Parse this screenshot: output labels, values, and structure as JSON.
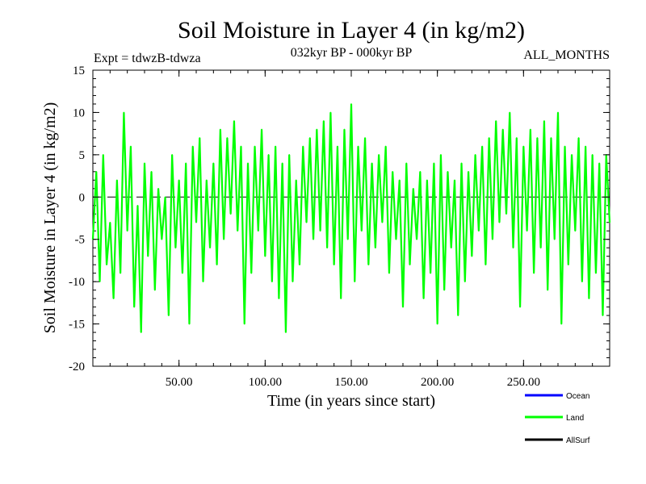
{
  "chart_data": {
    "type": "line",
    "title": "Soil Moisture in Layer 4 (in kg/m2)",
    "subtitle_left": "Expt = tdwzB-tdwza",
    "subtitle_center": "032kyr BP - 000kyr BP",
    "subtitle_right": "ALL_MONTHS",
    "xlabel": "Time (in years since start)",
    "ylabel": "Soil Moisture in Layer 4 (in kg/m2)",
    "xlim": [
      0,
      300
    ],
    "ylim": [
      -20,
      15
    ],
    "x_ticks": [
      50,
      100,
      150,
      200,
      250
    ],
    "x_tick_labels": [
      "50.00",
      "100.00",
      "150.00",
      "200.00",
      "250.00"
    ],
    "y_ticks": [
      -20,
      -15,
      -10,
      -5,
      0,
      5,
      10,
      15
    ],
    "y_tick_labels": [
      "-20",
      "-15",
      "-10",
      "-5",
      "0",
      "5",
      "10",
      "15"
    ],
    "zero_line": true,
    "legend_position": "bottom-right",
    "series": [
      {
        "name": "Ocean",
        "color": "#0000ff",
        "x": [],
        "values": []
      },
      {
        "name": "Land",
        "color": "#00ff00",
        "x": [
          0,
          2,
          4,
          6,
          8,
          10,
          12,
          14,
          16,
          18,
          20,
          22,
          24,
          26,
          28,
          30,
          32,
          34,
          36,
          38,
          40,
          42,
          44,
          46,
          48,
          50,
          52,
          54,
          56,
          58,
          60,
          62,
          64,
          66,
          68,
          70,
          72,
          74,
          76,
          78,
          80,
          82,
          84,
          86,
          88,
          90,
          92,
          94,
          96,
          98,
          100,
          102,
          104,
          106,
          108,
          110,
          112,
          114,
          116,
          118,
          120,
          122,
          124,
          126,
          128,
          130,
          132,
          134,
          136,
          138,
          140,
          142,
          144,
          146,
          148,
          150,
          152,
          154,
          156,
          158,
          160,
          162,
          164,
          166,
          168,
          170,
          172,
          174,
          176,
          178,
          180,
          182,
          184,
          186,
          188,
          190,
          192,
          194,
          196,
          198,
          200,
          202,
          204,
          206,
          208,
          210,
          212,
          214,
          216,
          218,
          220,
          222,
          224,
          226,
          228,
          230,
          232,
          234,
          236,
          238,
          240,
          242,
          244,
          246,
          248,
          250,
          252,
          254,
          256,
          258,
          260,
          262,
          264,
          266,
          268,
          270,
          272,
          274,
          276,
          278,
          280,
          282,
          284,
          286,
          288,
          290,
          292,
          294,
          296,
          298,
          300
        ],
        "values": [
          -5,
          3,
          -10,
          5,
          -8,
          -3,
          -12,
          2,
          -9,
          10,
          -4,
          6,
          -13,
          -1,
          -16,
          4,
          -7,
          3,
          -11,
          1,
          -5,
          0,
          -14,
          5,
          -6,
          2,
          -9,
          4,
          -15,
          6,
          -3,
          7,
          -10,
          2,
          -6,
          4,
          -8,
          8,
          -5,
          7,
          -2,
          9,
          -4,
          6,
          -15,
          4,
          -9,
          6,
          -4,
          8,
          -7,
          5,
          -10,
          6,
          -12,
          4,
          -16,
          5,
          -10,
          2,
          -8,
          6,
          -3,
          7,
          -5,
          8,
          -4,
          9,
          -6,
          10,
          -8,
          6,
          -12,
          8,
          -5,
          11,
          -10,
          6,
          -4,
          7,
          -8,
          4,
          -6,
          5,
          -3,
          6,
          -9,
          3,
          -5,
          2,
          -13,
          4,
          -8,
          1,
          -5,
          3,
          -12,
          2,
          -9,
          4,
          -15,
          5,
          -11,
          3,
          -6,
          2,
          -14,
          4,
          -10,
          3,
          -7,
          5,
          -4,
          6,
          -8,
          7,
          -5,
          9,
          -3,
          8,
          -2,
          10,
          -6,
          7,
          -13,
          6,
          -4,
          8,
          -9,
          7,
          -6,
          9,
          -11,
          7,
          -5,
          10,
          -15,
          6,
          -8,
          5,
          -4,
          7,
          -10,
          6,
          -12,
          5,
          -9,
          4,
          -14,
          5,
          -3
        ]
      },
      {
        "name": "AllSurf",
        "color": "#000000",
        "x": [],
        "values": []
      }
    ]
  }
}
